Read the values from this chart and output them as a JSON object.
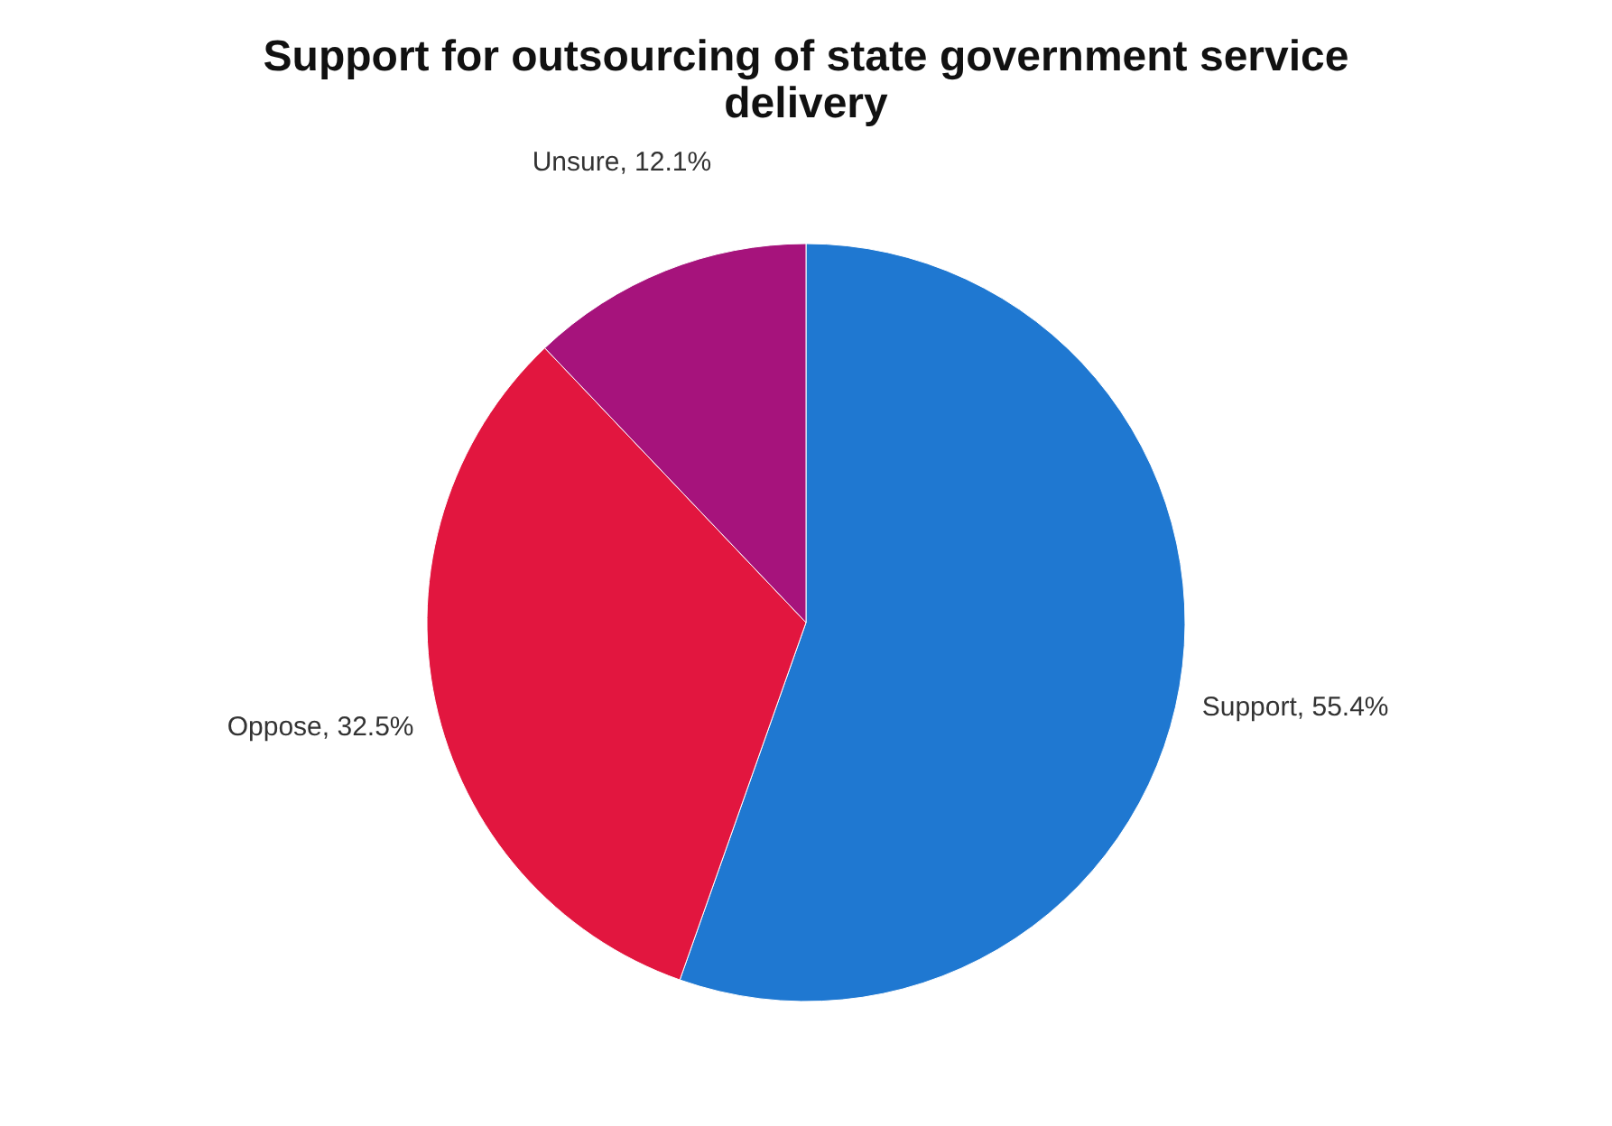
{
  "chart_data": {
    "type": "pie",
    "title": "Support for outsourcing of state government service delivery",
    "categories": [
      "Support",
      "Oppose",
      "Unsure"
    ],
    "values": [
      55.4,
      32.5,
      12.1
    ],
    "colors": [
      "#1f78d1",
      "#e2163f",
      "#a6137c"
    ],
    "value_labels": [
      "55.4%",
      "32.5%",
      "12.1%"
    ],
    "legend": false
  }
}
